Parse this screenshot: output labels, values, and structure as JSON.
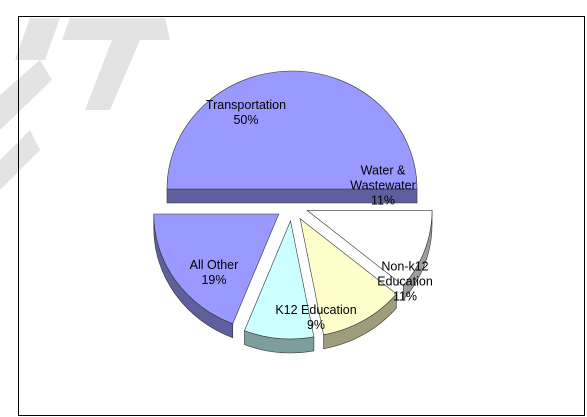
{
  "chart_data": {
    "type": "pie",
    "categories": [
      "Transportation",
      "Water & Wastewater",
      "Non-k12 Education",
      "K12 Education",
      "All Other"
    ],
    "values": [
      50,
      11,
      11,
      9,
      19
    ],
    "value_labels": [
      "50%",
      "11%",
      "11%",
      "9%",
      "19%"
    ],
    "colors": [
      "#9999ff",
      "#ffffff",
      "#ffffcc",
      "#ccffff",
      "#9999ff"
    ]
  }
}
